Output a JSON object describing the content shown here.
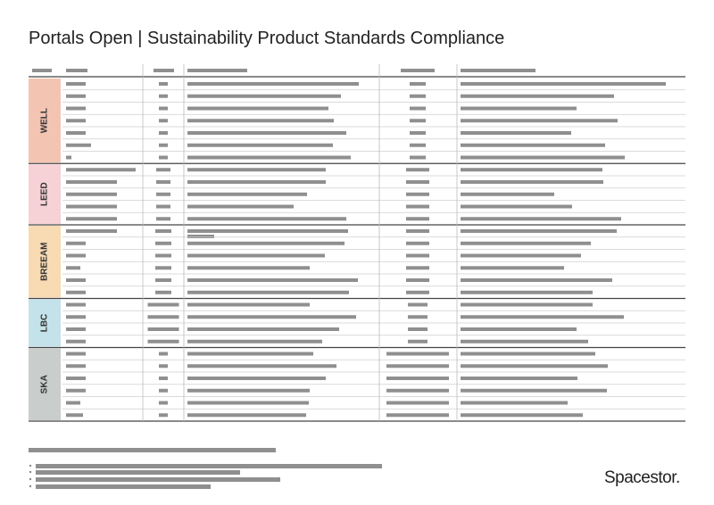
{
  "header": {
    "title": "Portals Open | Sustainability Product Standards Compliance"
  },
  "table": {
    "groups": [
      "WELL",
      "LEED",
      "BREEAM",
      "LBC",
      "SKA"
    ]
  },
  "footer": {
    "logo": "Spacestor."
  }
}
